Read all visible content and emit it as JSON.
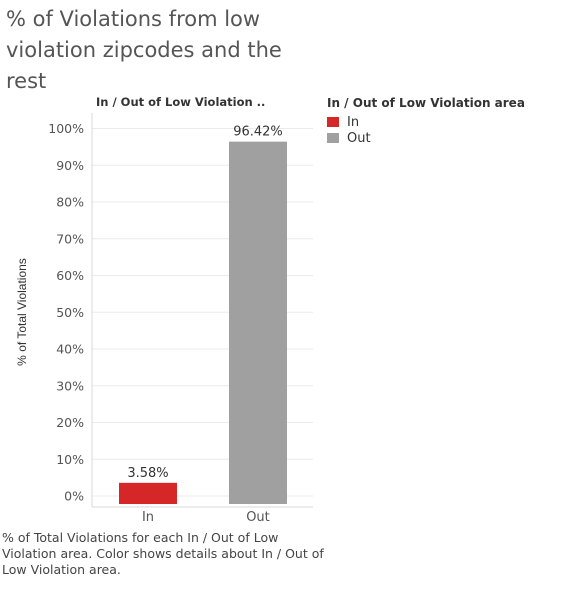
{
  "title": "% of Violations from low violation zipcodes and the rest",
  "column_header": "In / Out of Low Violation ..",
  "legend": {
    "title": "In / Out of Low Violation area",
    "placement": "right",
    "items": [
      {
        "label": "In",
        "color": "#d62728"
      },
      {
        "label": "Out",
        "color": "#a0a0a0"
      }
    ]
  },
  "caption": "% of Total Violations for each In / Out of Low Violation area.  Color shows details about In / Out of Low Violation area.",
  "chart_data": {
    "type": "bar",
    "categories": [
      "In",
      "Out"
    ],
    "values": [
      3.58,
      96.42
    ],
    "value_labels": [
      "3.58%",
      "96.42%"
    ],
    "colors": [
      "#d62728",
      "#a0a0a0"
    ],
    "ylabel": "% of Total Violations",
    "ylim": [
      0,
      100
    ],
    "yticks": [
      0,
      10,
      20,
      30,
      40,
      50,
      60,
      70,
      80,
      90,
      100
    ],
    "ytick_labels": [
      "0%",
      "10%",
      "20%",
      "30%",
      "40%",
      "50%",
      "60%",
      "70%",
      "80%",
      "90%",
      "100%"
    ],
    "grid": true
  }
}
